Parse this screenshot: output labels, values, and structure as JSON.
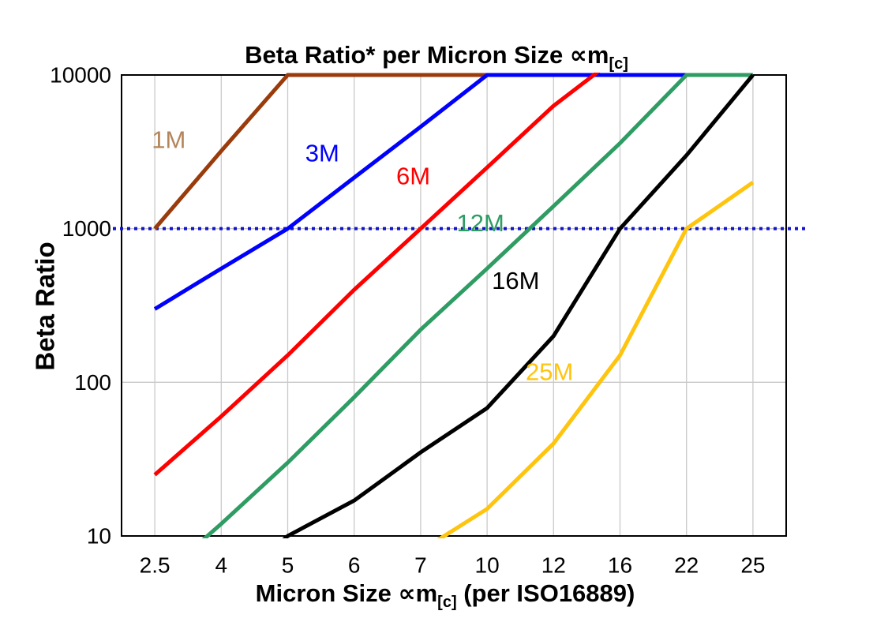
{
  "chart_data": {
    "type": "line",
    "title": "Beta Ratio* per Micron Size ∝m[c]",
    "title_runs": [
      {
        "text": "Beta Ratio* per Micron Size ∝m"
      },
      {
        "text": "[c]",
        "sub": true
      }
    ],
    "xlabel": "Micron Size ∝m[c] (per ISO16889)",
    "xlabel_runs": [
      {
        "text": "Micron Size ∝m"
      },
      {
        "text": "[c]",
        "sub": true
      },
      {
        "text": " (per ISO16889)"
      }
    ],
    "ylabel": "Beta Ratio",
    "x_categories": [
      "2.5",
      "4",
      "5",
      "6",
      "7",
      "10",
      "12",
      "16",
      "22",
      "25"
    ],
    "y_scale": "log",
    "ylim": [
      10,
      10000
    ],
    "y_ticks": [
      10,
      100,
      1000,
      10000
    ],
    "y_tick_labels": [
      "10",
      "100",
      "1000",
      "10000"
    ],
    "grid": {
      "vertical_per_category": true,
      "horizontal_at": [
        100,
        1000
      ],
      "color": "#C9C9C9"
    },
    "reference_line": {
      "value": 1000,
      "style": "dotted",
      "color": "#1212D1",
      "note": "horizontal dotted line at Beta Ratio = 1000, extends slightly past both plot edges"
    },
    "cap_value": 10000,
    "series": [
      {
        "id": "1M",
        "label": "1M",
        "line_color": "#9A3B0B",
        "label_color": "#B3855A",
        "values": [
          1000,
          3200,
          10000,
          10000,
          10000,
          10000,
          null,
          null,
          null,
          null
        ],
        "label_anchor": {
          "x_index": 0.71,
          "value": 3800
        }
      },
      {
        "id": "3M",
        "label": "3M",
        "line_color": "#0000FF",
        "label_color": "#0000FF",
        "values": [
          300,
          550,
          1000,
          2150,
          4600,
          10000,
          10000,
          10000,
          10000,
          null
        ],
        "label_anchor": {
          "x_index": 3.02,
          "value": 3100
        }
      },
      {
        "id": "6M",
        "label": "6M",
        "line_color": "#FF0000",
        "label_color": "#FF0000",
        "values": [
          25,
          60,
          150,
          400,
          1000,
          2500,
          6300,
          13500,
          null,
          null
        ],
        "note": "rises above 10000 between 12 and 16; clipped at chart top",
        "label_anchor": {
          "x_index": 4.39,
          "value": 2200
        }
      },
      {
        "id": "12M",
        "label": "12M",
        "line_color": "#2E9C63",
        "label_color": "#2E9C63",
        "values": [
          5,
          12,
          30,
          80,
          220,
          550,
          1400,
          3600,
          10000,
          10000
        ],
        "note": "enters from below 10 just left of category 4",
        "label_anchor": {
          "x_index": 5.4,
          "value": 1090
        }
      },
      {
        "id": "16M",
        "label": "16M",
        "line_color": "#000000",
        "label_color": "#000000",
        "values": [
          null,
          4,
          10,
          17,
          35,
          68,
          200,
          1000,
          3000,
          10000
        ],
        "note": "reaches 10 at category 5, reaches 10000 at category 25",
        "label_anchor": {
          "x_index": 5.93,
          "value": 460
        }
      },
      {
        "id": "25M",
        "label": "25M",
        "line_color": "#FFC40D",
        "label_color": "#FFC40D",
        "values": [
          null,
          null,
          null,
          null,
          8,
          15,
          40,
          150,
          1000,
          2000
        ],
        "note": "enters from below 10 between categories 7 and 10; ends at (25, 2000)",
        "label_anchor": {
          "x_index": 6.44,
          "value": 117
        }
      }
    ],
    "legend_position": "inline-labels",
    "colors": {
      "background": "#FFFFFF",
      "plot_border": "#000000",
      "text": "#000000"
    }
  }
}
